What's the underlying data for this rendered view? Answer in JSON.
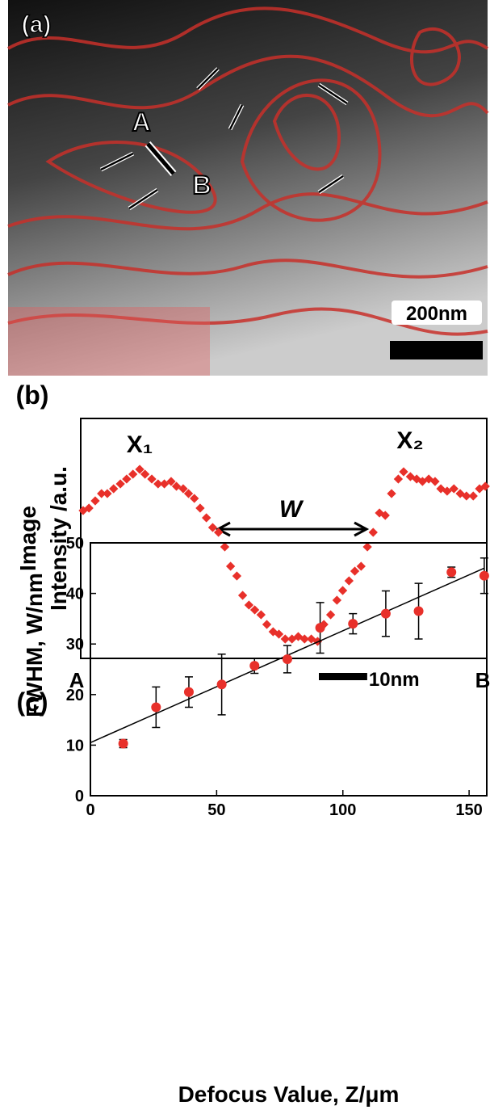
{
  "panel_a": {
    "label": "(a)",
    "point_a": "A",
    "point_b": "B",
    "scale_label": "200nm"
  },
  "chart_data": [
    {
      "type": "scatter",
      "label": "(b)",
      "ylabel": [
        "Image",
        "Intensity /a.u."
      ],
      "marker": "diamond",
      "color": "#e8302a",
      "x": [
        0.5,
        1.7,
        3.0,
        4.3,
        5.5,
        6.8,
        8.2,
        9.5,
        10.8,
        12.2,
        13.3,
        14.7,
        16.0,
        17.3,
        18.7,
        19.8,
        21.2,
        22.3,
        23.5,
        24.7,
        26.0,
        27.3,
        28.5,
        29.8,
        31.0,
        32.3,
        33.5,
        34.8,
        36.0,
        37.3,
        38.5,
        39.8,
        41.0,
        42.3,
        43.7,
        45.0,
        46.3,
        47.7,
        49.0,
        50.3,
        51.7,
        53.0,
        54.2,
        55.5,
        56.7,
        58.0,
        59.3,
        60.5,
        61.8,
        63.0,
        64.3,
        65.7,
        66.8,
        68.2,
        69.5,
        70.7,
        72.0,
        73.3,
        74.5,
        75.8,
        77.2,
        78.5,
        79.8,
        81.2,
        82.5,
        83.7
      ],
      "values": [
        61,
        62,
        65,
        68,
        68,
        70,
        72,
        74,
        76,
        78,
        76,
        74,
        72,
        72,
        73,
        71,
        70,
        68,
        66,
        62,
        58,
        54,
        52,
        46,
        38,
        34,
        26,
        22,
        20,
        18,
        14,
        11,
        10,
        8,
        8,
        9,
        8,
        8,
        7,
        14,
        18,
        24,
        28,
        32,
        36,
        38,
        46,
        52,
        60,
        59,
        68,
        74,
        77,
        75,
        74,
        73,
        74,
        73,
        70,
        69,
        70,
        68,
        67,
        67,
        70,
        71
      ],
      "xlim": [
        0,
        84
      ],
      "ylim": [
        0,
        99
      ],
      "annotations": [
        "X₁",
        "X₂",
        "W"
      ],
      "start_label": "A",
      "end_label": "B",
      "scale_bar": {
        "value": 10,
        "label": "10nm"
      }
    },
    {
      "type": "scatter",
      "label": "(c)",
      "xlabel": "Defocus Value, Z/μm",
      "ylabel": "FWHM,  W/nm",
      "marker": "circle",
      "color": "#e8302a",
      "x": [
        13,
        26,
        39,
        52,
        65,
        78,
        91,
        104,
        117,
        130,
        143,
        156
      ],
      "values": [
        10.3,
        17.5,
        20.5,
        22,
        25.7,
        27,
        33.2,
        34,
        36,
        36.5,
        44.2,
        43.5
      ],
      "errors": [
        0.8,
        4,
        3,
        6,
        1.5,
        2.7,
        5,
        2,
        4.5,
        5.5,
        1,
        3.5
      ],
      "xlim": [
        0,
        157
      ],
      "ylim": [
        0,
        50
      ],
      "xticks": [
        0,
        50,
        100,
        150
      ],
      "yticks": [
        0,
        10,
        20,
        30,
        40,
        50
      ],
      "fit": {
        "x": [
          0,
          156
        ],
        "y": [
          10.5,
          45
        ]
      }
    }
  ]
}
